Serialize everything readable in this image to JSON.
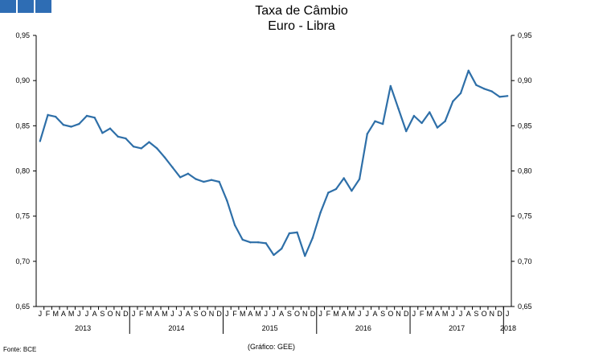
{
  "header": {
    "title_line1": "Taxa de Câmbio",
    "title_line2": "Euro - Libra",
    "logo_color": "#2e6db4"
  },
  "footer": {
    "source": "Fonte: BCE",
    "credit": "(Gráfico: GEE)"
  },
  "chart_data": {
    "type": "line",
    "title": "Taxa de Câmbio Euro - Libra",
    "xlabel": "",
    "ylabel": "",
    "ylim": [
      0.65,
      0.95
    ],
    "yticks": [
      "0,65",
      "0,70",
      "0,75",
      "0,80",
      "0,85",
      "0,90",
      "0,95"
    ],
    "month_letters": [
      "J",
      "F",
      "M",
      "A",
      "M",
      "J",
      "J",
      "A",
      "S",
      "O",
      "N",
      "D"
    ],
    "years": [
      "2013",
      "2014",
      "2015",
      "2016",
      "2017",
      "2018"
    ],
    "grid": false,
    "line_color": "#2e6fa8",
    "series": [
      {
        "values": [
          0.833,
          0.862,
          0.86,
          0.851,
          0.849,
          0.852,
          0.861,
          0.859,
          0.842,
          0.847,
          0.838,
          0.836,
          0.827,
          0.825,
          0.832,
          0.825,
          0.815,
          0.804,
          0.793,
          0.797,
          0.791,
          0.788,
          0.79,
          0.788,
          0.767,
          0.74,
          0.724,
          0.721,
          0.721,
          0.72,
          0.707,
          0.714,
          0.731,
          0.732,
          0.706,
          0.726,
          0.754,
          0.776,
          0.78,
          0.792,
          0.778,
          0.791,
          0.841,
          0.855,
          0.852,
          0.894,
          0.869,
          0.844,
          0.861,
          0.853,
          0.865,
          0.848,
          0.855,
          0.877,
          0.886,
          0.911,
          0.895,
          0.891,
          0.888,
          0.882,
          0.883
        ]
      }
    ]
  }
}
